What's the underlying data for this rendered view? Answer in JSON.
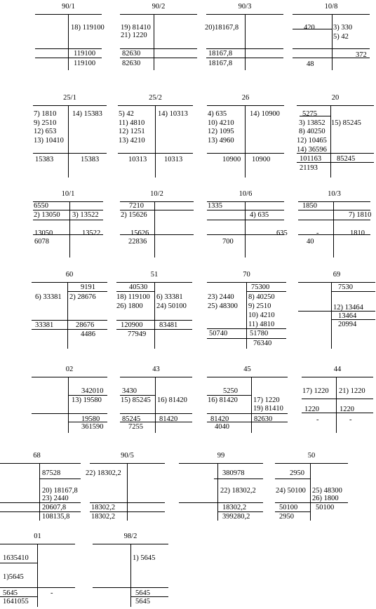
{
  "accounts": [
    {
      "id": "90/1",
      "title": "90/1",
      "debit": [],
      "credit": [
        "18) 119100"
      ],
      "dt_turn": "",
      "kt_turn": "119100",
      "dt_end": "",
      "kt_end": "119100"
    },
    {
      "id": "90/2",
      "title": "90/2",
      "debit": [
        "19) 81410",
        "21) 1220"
      ],
      "credit": [],
      "dt_turn": "82630",
      "kt_turn": "",
      "dt_end": "82630",
      "kt_end": ""
    },
    {
      "id": "90/3",
      "title": "90/3",
      "debit": [
        "20)18167,8"
      ],
      "credit": [],
      "dt_turn": "18167,8",
      "kt_turn": "",
      "dt_end": "18167,8",
      "kt_end": ""
    },
    {
      "id": "10/8",
      "title": "10/8",
      "open_dt": "420",
      "debit": [],
      "credit": [
        "3) 330",
        "5) 42"
      ],
      "dt_turn": "",
      "kt_turn": "372",
      "dt_end": "48",
      "kt_end": ""
    },
    {
      "id": "25/1",
      "title": "25/1",
      "debit": [
        "7) 1810",
        "9) 2510",
        "12) 653",
        "13) 10410"
      ],
      "credit": [
        "14) 15383"
      ],
      "dt_turn": "15383",
      "kt_turn": "15383",
      "dt_end": "",
      "kt_end": ""
    },
    {
      "id": "25/2",
      "title": "25/2",
      "debit": [
        "5) 42",
        "11) 4810",
        "12) 1251",
        "13) 4210"
      ],
      "credit": [
        "14) 10313"
      ],
      "dt_turn": "10313",
      "kt_turn": "10313",
      "dt_end": "",
      "kt_end": ""
    },
    {
      "id": "26",
      "title": "26",
      "debit": [
        "4) 635",
        "10) 4210",
        "12) 1095",
        "13) 4960"
      ],
      "credit": [
        "14) 10900"
      ],
      "dt_turn": "10900",
      "kt_turn": "10900",
      "dt_end": "",
      "kt_end": ""
    },
    {
      "id": "20",
      "title": "20",
      "open_dt": "5275",
      "debit": [
        "3) 13852",
        "8) 40250",
        "12) 10465",
        "14) 36596"
      ],
      "credit": [
        "15) 85245"
      ],
      "dt_turn": "101163",
      "kt_turn": "85245",
      "dt_end": "21193",
      "kt_end": ""
    },
    {
      "id": "10/1",
      "title": "10/1",
      "open_dt": "6550",
      "debit": [
        "2) 13050"
      ],
      "credit": [
        "3) 13522"
      ],
      "dt_turn": "13050",
      "kt_turn": "13522",
      "dt_end": "6078",
      "kt_end": ""
    },
    {
      "id": "10/2",
      "title": "10/2",
      "open_dt": "7210",
      "debit": [
        "2) 15626"
      ],
      "credit": [],
      "dt_turn": "15626",
      "kt_turn": "",
      "dt_end": "22836",
      "kt_end": ""
    },
    {
      "id": "10/6",
      "title": "10/6",
      "open_dt": "1335",
      "debit": [],
      "credit": [
        "4) 635"
      ],
      "dt_turn": "",
      "kt_turn": "635",
      "dt_end": "700",
      "kt_end": ""
    },
    {
      "id": "10/3",
      "title": "10/3",
      "open_dt": "1850",
      "debit": [],
      "credit": [
        "7) 1810"
      ],
      "dt_turn": "-",
      "kt_turn": "1810",
      "dt_end": "40",
      "kt_end": ""
    },
    {
      "id": "60",
      "title": "60",
      "open_kt": "9191",
      "debit": [
        "6) 33381"
      ],
      "credit": [
        "2) 28676"
      ],
      "dt_turn": "33381",
      "kt_turn": "28676",
      "dt_end": "",
      "kt_end": "4486"
    },
    {
      "id": "51",
      "title": "51",
      "open_dt": "40530",
      "debit": [
        "18) 119100",
        "26) 1800"
      ],
      "credit": [
        "6) 33381",
        "24) 50100"
      ],
      "dt_turn": "120900",
      "kt_turn": "83481",
      "dt_end": "77949",
      "kt_end": ""
    },
    {
      "id": "70",
      "title": "70",
      "open_kt": "75300",
      "debit": [
        "23) 2440",
        "25) 48300"
      ],
      "credit": [
        "8) 40250",
        "9) 2510",
        "10) 4210",
        "11) 4810"
      ],
      "dt_turn": "50740",
      "kt_turn": "51780",
      "dt_end": "",
      "kt_end": "76340"
    },
    {
      "id": "69",
      "title": "69",
      "open_kt": "7530",
      "debit": [],
      "credit": [
        "12) 13464"
      ],
      "dt_turn": "",
      "kt_turn": "13464",
      "dt_end": "",
      "kt_end": "20994"
    },
    {
      "id": "02",
      "title": "02",
      "open_kt": "342010",
      "debit": [],
      "credit": [
        "13) 19580"
      ],
      "dt_turn": "",
      "kt_turn": "19580",
      "dt_end": "",
      "kt_end": "361590"
    },
    {
      "id": "43",
      "title": "43",
      "open_dt": "3430",
      "debit": [
        "15) 85245"
      ],
      "credit": [
        "16) 81420"
      ],
      "dt_turn": "85245",
      "kt_turn": "81420",
      "dt_end": "7255",
      "kt_end": ""
    },
    {
      "id": "45",
      "title": "45",
      "open_dt": "5250",
      "debit": [
        "16) 81420"
      ],
      "credit": [
        "17) 1220",
        "19) 81410"
      ],
      "dt_turn": "81420",
      "kt_turn": "82630",
      "dt_end": "4040",
      "kt_end": ""
    },
    {
      "id": "44",
      "title": "44",
      "debit": [
        "17) 1220"
      ],
      "credit": [
        "21) 1220"
      ],
      "dt_turn": "1220",
      "kt_turn": "1220",
      "dt_end": "-",
      "kt_end": "-"
    },
    {
      "id": "68",
      "title": "68",
      "open_kt": "87528",
      "debit": [],
      "credit": [
        "20) 18167,8",
        "23) 2440"
      ],
      "dt_turn": "",
      "kt_turn": "20607,8",
      "dt_end": "",
      "kt_end": "108135,8"
    },
    {
      "id": "90/5",
      "title": "90/5",
      "debit": [
        "22) 18302,2"
      ],
      "credit": [],
      "dt_turn": "18302,2",
      "kt_turn": "",
      "dt_end": "18302,2",
      "kt_end": ""
    },
    {
      "id": "99",
      "title": "99",
      "open_kt": "380978",
      "debit": [],
      "credit": [
        "22) 18302,2"
      ],
      "dt_turn": "",
      "kt_turn": "18302,2",
      "dt_end": "",
      "kt_end": "399280,2"
    },
    {
      "id": "50",
      "title": "50",
      "open_dt": "2950",
      "debit": [
        "24) 50100"
      ],
      "credit": [
        "25) 48300",
        "26) 1800"
      ],
      "dt_turn": "50100",
      "kt_turn": "50100",
      "dt_end": "2950",
      "kt_end": ""
    },
    {
      "id": "01",
      "title": "01",
      "open_dt": "1635410",
      "debit": [
        "1)5645"
      ],
      "credit": [],
      "dt_turn": "5645",
      "kt_turn": "-",
      "dt_end": "1641055",
      "kt_end": ""
    },
    {
      "id": "98/2",
      "title": "98/2",
      "debit": [],
      "credit": [
        "1) 5645"
      ],
      "dt_turn": "",
      "kt_turn": "5645",
      "dt_end": "",
      "kt_end": "5645"
    }
  ]
}
